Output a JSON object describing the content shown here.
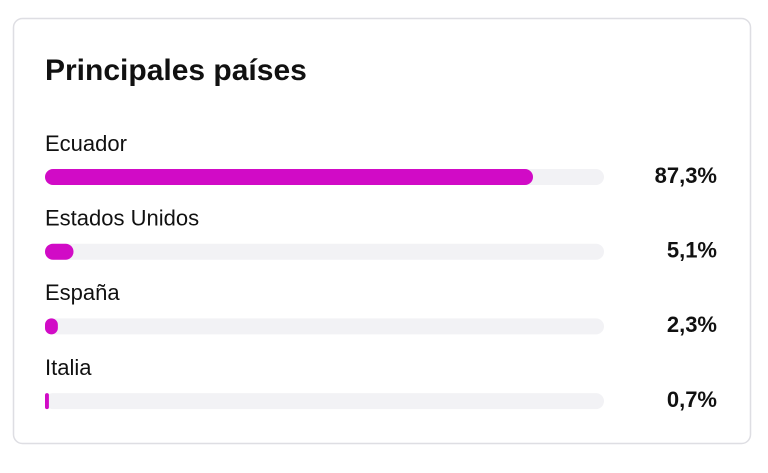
{
  "chart_data": {
    "type": "bar",
    "orientation": "horizontal",
    "title": "Principales países",
    "categories": [
      "Ecuador",
      "Estados Unidos",
      "España",
      "Italia"
    ],
    "values": [
      87.3,
      5.1,
      2.3,
      0.7
    ],
    "value_labels": [
      "87,3%",
      "5,1%",
      "2,3%",
      "0,7%"
    ],
    "color": "#d10bc6",
    "track_color": "#f2f2f5",
    "xlim": [
      0,
      100
    ]
  }
}
